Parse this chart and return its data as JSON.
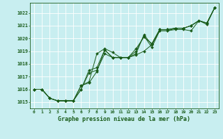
{
  "title": "Graphe pression niveau de la mer (hPa)",
  "background_color": "#c8eef0",
  "grid_color": "#aadddd",
  "line_color": "#1a5c1a",
  "xlim": [
    -0.5,
    23.5
  ],
  "ylim": [
    1014.5,
    1022.8
  ],
  "yticks": [
    1015,
    1016,
    1017,
    1018,
    1019,
    1020,
    1021,
    1022
  ],
  "xticks": [
    0,
    1,
    2,
    3,
    4,
    5,
    6,
    7,
    8,
    9,
    10,
    11,
    12,
    13,
    14,
    15,
    16,
    17,
    18,
    19,
    20,
    21,
    22,
    23
  ],
  "series": [
    [
      1016.0,
      1016.0,
      1015.3,
      1015.1,
      1015.1,
      1015.1,
      1016.3,
      1016.6,
      1018.8,
      1019.2,
      1018.9,
      1018.5,
      1018.5,
      1019.0,
      1020.2,
      1019.3,
      1020.6,
      1020.6,
      1020.7,
      1020.7,
      1020.6,
      1021.4,
      1021.2,
      1022.4
    ],
    [
      1016.0,
      1016.0,
      1015.3,
      1015.1,
      1015.1,
      1015.1,
      1016.0,
      1017.3,
      1017.5,
      1018.8,
      1018.5,
      1018.5,
      1018.5,
      1018.7,
      1019.0,
      1019.5,
      1020.6,
      1020.6,
      1020.8,
      1020.8,
      1021.0,
      1021.4,
      1021.2,
      1022.4
    ],
    [
      1016.0,
      1016.0,
      1015.3,
      1015.1,
      1015.1,
      1015.1,
      1016.0,
      1017.5,
      1017.7,
      1019.1,
      1018.5,
      1018.5,
      1018.5,
      1019.2,
      1020.1,
      1019.6,
      1020.7,
      1020.7,
      1020.8,
      1020.8,
      1021.0,
      1021.4,
      1021.2,
      1022.4
    ],
    [
      1016.0,
      1016.0,
      1015.3,
      1015.1,
      1015.1,
      1015.1,
      1016.3,
      1016.5,
      1017.4,
      1019.1,
      1018.5,
      1018.5,
      1018.5,
      1018.8,
      1020.3,
      1019.5,
      1020.7,
      1020.7,
      1020.8,
      1020.8,
      1021.0,
      1021.4,
      1021.1,
      1022.4
    ]
  ]
}
